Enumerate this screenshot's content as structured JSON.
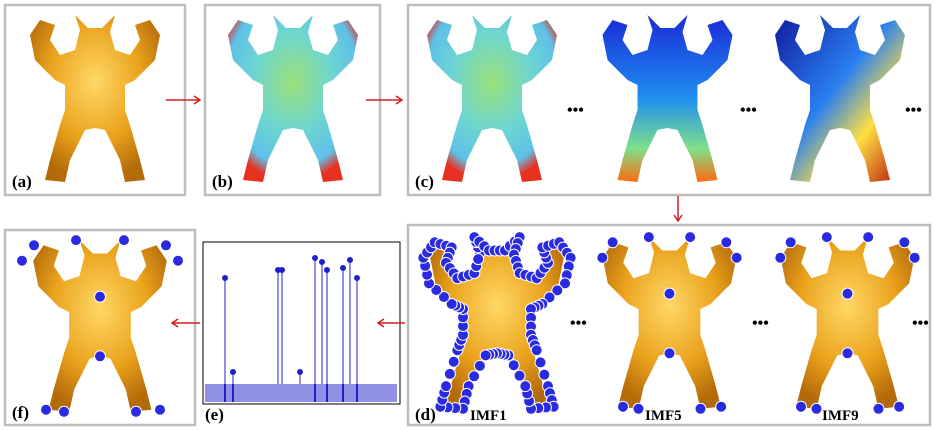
{
  "panels": {
    "a": "(a)",
    "b": "(b)",
    "c": "(c)",
    "d": "(d)",
    "e": "(e)",
    "f": "(f)"
  },
  "imf_labels": [
    "IMF1",
    "IMF5",
    "IMF9"
  ],
  "ellipsis": "•••"
}
